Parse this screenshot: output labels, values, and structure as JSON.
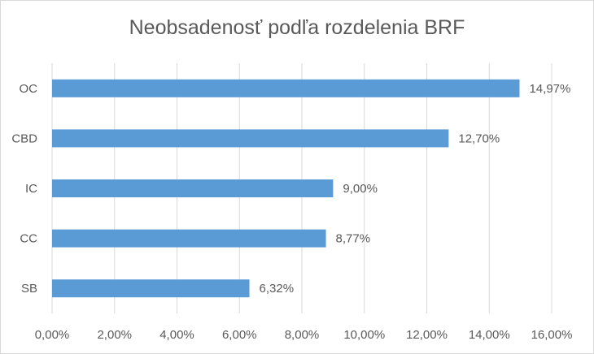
{
  "chart_data": {
    "type": "bar",
    "orientation": "horizontal",
    "title": "Neobsadenosť podľa rozdelenia BRF",
    "categories": [
      "OC",
      "CBD",
      "IC",
      "CC",
      "SB"
    ],
    "values": [
      14.97,
      12.7,
      9.0,
      8.77,
      6.32
    ],
    "value_labels": [
      "14,97%",
      "12,70%",
      "9,00%",
      "8,77%",
      "6,32%"
    ],
    "x_ticks": [
      "0,00%",
      "2,00%",
      "4,00%",
      "6,00%",
      "8,00%",
      "10,00%",
      "12,00%",
      "14,00%",
      "16,00%"
    ],
    "xlim": [
      0,
      16
    ],
    "xlabel": "",
    "ylabel": "",
    "grid": "vertical",
    "legend": "none",
    "colors": {
      "bar": "#5b9bd5",
      "grid": "#d9d9d9",
      "text": "#595959"
    }
  }
}
